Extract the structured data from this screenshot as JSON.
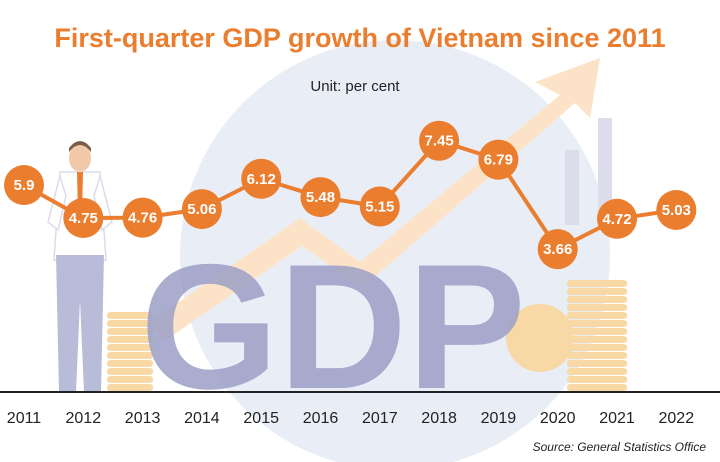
{
  "chart_data": {
    "type": "line",
    "title": "First-quarter GDP growth of Vietnam since 2011",
    "unit_label": "Unit: per cent",
    "source": "Source: General Statistics Office",
    "watermark_text": "GDP",
    "categories": [
      "2011",
      "2012",
      "2013",
      "2014",
      "2015",
      "2016",
      "2017",
      "2018",
      "2019",
      "2020",
      "2021",
      "2022"
    ],
    "series": [
      {
        "name": "First-quarter GDP growth",
        "values": [
          5.9,
          4.75,
          4.76,
          5.06,
          6.12,
          5.48,
          5.15,
          7.45,
          6.79,
          3.66,
          4.72,
          5.03
        ]
      }
    ],
    "value_labels": [
      "5.9",
      "4.75",
      "4.76",
      "5.06",
      "6.12",
      "5.48",
      "5.15",
      "7.45",
      "6.79",
      "3.66",
      "4.72",
      "5.03"
    ],
    "ylim": [
      3,
      8
    ],
    "xlabel": "",
    "ylabel": "per cent",
    "grid": false,
    "legend": "none"
  },
  "colors": {
    "accent": "#EB7D2F",
    "title": "#EB7D2F",
    "text": "#222222",
    "marker_text": "#ffffff",
    "background_circle": "#E9EEF6",
    "watermark": "#9C9FC6",
    "arrow": "#FCE3C8",
    "coins": "#F8D9A6",
    "bars": "#DCDCEB"
  }
}
